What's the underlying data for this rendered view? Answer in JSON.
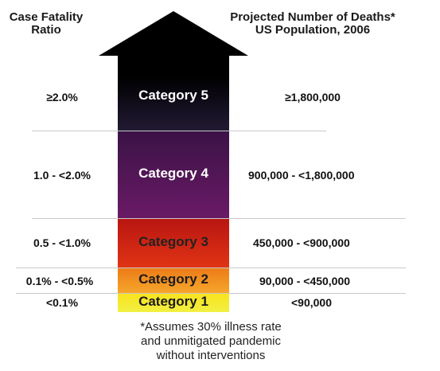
{
  "headers": {
    "left": [
      "Case Fatality",
      "Ratio"
    ],
    "right": [
      "Projected Number of Deaths*",
      "US Population, 2006"
    ]
  },
  "rows": [
    {
      "ratio": "≥2.0%",
      "category": "Category 5",
      "deaths": "≥1,800,000",
      "color": "#14101e",
      "text_color": "#ffffff"
    },
    {
      "ratio": "1.0 - <2.0%",
      "category": "Category 4",
      "deaths": "900,000 - <1,800,000",
      "color": "#5a1760",
      "text_color": "#ffffff"
    },
    {
      "ratio": "0.5 - <1.0%",
      "category": "Category 3",
      "deaths": "450,000 - <900,000",
      "color": "#c81e10",
      "text_color": "#222222"
    },
    {
      "ratio": "0.1% - <0.5%",
      "category": "Category 2",
      "deaths": "90,000 - <450,000",
      "color": "#f18a1a",
      "text_color": "#1a1a1a"
    },
    {
      "ratio": "<0.1%",
      "category": "Category 1",
      "deaths": "<90,000",
      "color": "#f5ea21",
      "text_color": "#1a1a1a"
    }
  ],
  "footnote": [
    "*Assumes 30% illness rate",
    "and unmitigated pandemic",
    "without interventions"
  ],
  "colors": {
    "arrow_head": "#000000",
    "separator": "#c9c9c9"
  }
}
